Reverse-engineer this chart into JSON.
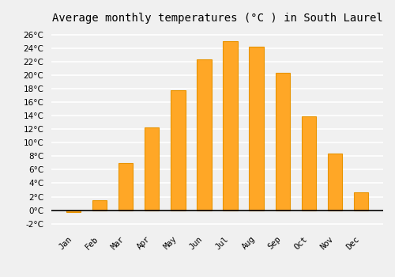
{
  "title": "Average monthly temperatures (°C ) in South Laurel",
  "months": [
    "Jan",
    "Feb",
    "Mar",
    "Apr",
    "May",
    "Jun",
    "Jul",
    "Aug",
    "Sep",
    "Oct",
    "Nov",
    "Dec"
  ],
  "values": [
    -0.3,
    1.5,
    7.0,
    12.2,
    17.8,
    22.3,
    25.0,
    24.2,
    20.3,
    13.9,
    8.4,
    2.7
  ],
  "bar_color": "#FFA726",
  "bar_edge_color": "#E89400",
  "ylim": [
    -2.5,
    27
  ],
  "yticks": [
    -2,
    0,
    2,
    4,
    6,
    8,
    10,
    12,
    14,
    16,
    18,
    20,
    22,
    24,
    26
  ],
  "background_color": "#f0f0f0",
  "grid_color": "#ffffff",
  "title_fontsize": 10,
  "bar_width": 0.55
}
